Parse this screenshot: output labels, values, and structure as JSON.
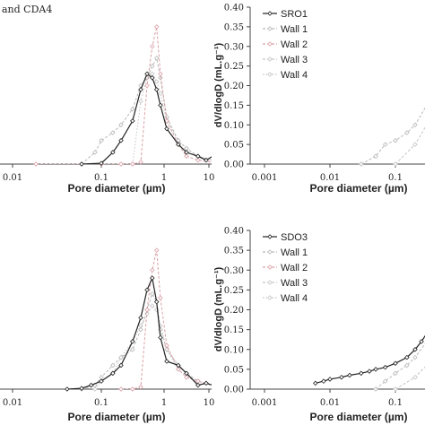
{
  "chart_data": [
    {
      "type": "line",
      "panel": "top-left",
      "title_fragment": "and CDA4",
      "xlabel": "Pore diameter (µm)",
      "ylabel": "",
      "x_scale": "log",
      "xlim": [
        0.001,
        10
      ],
      "ylim": [
        0,
        0.4
      ],
      "x_tick_labels": [
        "0.01",
        "0.1",
        "1",
        "10"
      ],
      "y_tick_labels": [],
      "legend": false,
      "series": [
        {
          "color": "#222222",
          "marker": "diamond-open",
          "dash": "solid",
          "x": [
            0.05,
            0.1,
            0.15,
            0.2,
            0.3,
            0.4,
            0.5,
            0.6,
            0.7,
            0.8,
            1.0,
            1.5,
            2,
            3,
            4,
            5,
            6,
            7
          ],
          "y": [
            0,
            0.002,
            0.03,
            0.06,
            0.11,
            0.19,
            0.23,
            0.22,
            0.19,
            0.15,
            0.09,
            0.05,
            0.03,
            0.02,
            0.01,
            0.02,
            0.005,
            0.01
          ]
        },
        {
          "color": "#d9a0a8",
          "marker": "diamond-open",
          "dash": "dashed",
          "x": [
            0.01,
            0.05,
            0.1,
            0.2,
            0.3,
            0.4,
            0.5,
            0.6,
            0.7,
            0.8,
            1.0,
            1.5,
            2,
            3,
            5,
            7
          ],
          "y": [
            0,
            0,
            0,
            0,
            0,
            0.005,
            0.2,
            0.3,
            0.35,
            0.23,
            0.11,
            0.05,
            0.02,
            0.01,
            0.005,
            0
          ]
        },
        {
          "color": "#b8b8b8",
          "marker": "diamond-open",
          "dash": "dashed",
          "x": [
            0.05,
            0.08,
            0.1,
            0.15,
            0.2,
            0.3,
            0.4,
            0.5,
            0.6,
            0.7,
            0.8,
            1.0,
            1.5,
            2,
            3,
            5,
            7
          ],
          "y": [
            0,
            0.03,
            0.06,
            0.08,
            0.1,
            0.14,
            0.2,
            0.22,
            0.25,
            0.27,
            0.22,
            0.12,
            0.06,
            0.04,
            0.02,
            0.01,
            0
          ]
        },
        {
          "color": "#c4c4c4",
          "marker": "diamond-open",
          "dash": "dotted",
          "x": [
            0.3,
            0.4,
            0.5,
            0.6,
            0.7,
            0.8,
            1.0,
            1.5,
            2,
            3,
            5,
            7
          ],
          "y": [
            0,
            0.16,
            0.22,
            0.23,
            0.21,
            0.18,
            0.11,
            0.06,
            0.04,
            0.02,
            0.01,
            0
          ]
        }
      ]
    },
    {
      "type": "line",
      "panel": "top-right",
      "xlabel": "Pore diameter (µm)",
      "ylabel": "dV/dlogD (mL.g⁻¹)",
      "x_scale": "log",
      "xlim": [
        0.001,
        0.45
      ],
      "ylim": [
        0,
        0.4
      ],
      "x_tick_labels": [
        "0.001",
        "0.01",
        "0.1"
      ],
      "y_tick_labels": [
        "0.00",
        "0.05",
        "0.10",
        "0.15",
        "0.20",
        "0.25",
        "0.30",
        "0.35",
        "0.40"
      ],
      "legend": true,
      "legend_position": "top-right",
      "series": [
        {
          "name": "SRO1",
          "color": "#222222",
          "marker": "diamond-open",
          "dash": "solid",
          "x": [
            0.3,
            0.35,
            0.4,
            0.45
          ],
          "y": [
            0,
            0.01,
            0.06,
            0.08
          ]
        },
        {
          "name": "Wall 1",
          "color": "#b8b8b8",
          "marker": "diamond-open",
          "dash": "dashed",
          "x": [
            0.03,
            0.05,
            0.07,
            0.1,
            0.15,
            0.2,
            0.3,
            0.4,
            0.45
          ],
          "y": [
            0,
            0.02,
            0.05,
            0.06,
            0.08,
            0.1,
            0.15,
            0.2,
            0.21
          ]
        },
        {
          "name": "Wall 2",
          "color": "#d9a0a8",
          "marker": "diamond-open",
          "dash": "dashed",
          "x": [
            0.35,
            0.4,
            0.45
          ],
          "y": [
            0,
            0.08,
            0.15
          ]
        },
        {
          "name": "Wall 3",
          "color": "#c4c4c4",
          "marker": "diamond-open",
          "dash": "dashed",
          "x": [
            0.1,
            0.2,
            0.3,
            0.45
          ],
          "y": [
            0,
            0.05,
            0.1,
            0.14
          ]
        },
        {
          "name": "Wall 4",
          "color": "#c4c4c4",
          "marker": "diamond-open",
          "dash": "dotted",
          "x": [
            0.4,
            0.45
          ],
          "y": [
            0,
            0.06
          ]
        }
      ]
    },
    {
      "type": "line",
      "panel": "bottom-left",
      "xlabel": "Pore diameter (µm)",
      "ylabel": "",
      "x_scale": "log",
      "xlim": [
        0.001,
        10
      ],
      "ylim": [
        0,
        0.4
      ],
      "x_tick_labels": [
        "0.01",
        "0.1",
        "1",
        "10"
      ],
      "y_tick_labels": [],
      "legend": false,
      "series": [
        {
          "color": "#222222",
          "marker": "diamond-open",
          "dash": "solid",
          "x": [
            0.03,
            0.05,
            0.07,
            0.1,
            0.15,
            0.2,
            0.3,
            0.4,
            0.5,
            0.6,
            0.7,
            0.8,
            1.0,
            1.5,
            2,
            3,
            4,
            5,
            7
          ],
          "y": [
            0,
            0.002,
            0.01,
            0.02,
            0.04,
            0.06,
            0.12,
            0.18,
            0.25,
            0.28,
            0.22,
            0.13,
            0.07,
            0.06,
            0.04,
            0.01,
            0.015,
            0.01,
            0
          ]
        },
        {
          "color": "#d9a0a8",
          "marker": "diamond-open",
          "dash": "dashed",
          "x": [
            0.2,
            0.3,
            0.4,
            0.5,
            0.6,
            0.7,
            0.8,
            1.0,
            1.5,
            2,
            3,
            5,
            7
          ],
          "y": [
            0,
            0,
            0.005,
            0.2,
            0.3,
            0.35,
            0.23,
            0.11,
            0.05,
            0.03,
            0.02,
            0.01,
            0
          ]
        },
        {
          "color": "#b8b8b8",
          "marker": "diamond-open",
          "dash": "dashed",
          "x": [
            0.05,
            0.08,
            0.1,
            0.15,
            0.2,
            0.3,
            0.4,
            0.5,
            0.6,
            0.7,
            0.8,
            1.0,
            1.5,
            2,
            3,
            5,
            7
          ],
          "y": [
            0,
            0.01,
            0.03,
            0.06,
            0.08,
            0.1,
            0.15,
            0.2,
            0.24,
            0.22,
            0.15,
            0.1,
            0.06,
            0.04,
            0.02,
            0.01,
            0
          ]
        },
        {
          "color": "#c4c4c4",
          "marker": "diamond-open",
          "dash": "dotted",
          "x": [
            0.08,
            0.1,
            0.15,
            0.2,
            0.3,
            0.4,
            0.5,
            0.6,
            0.7,
            0.8,
            1.0,
            1.5,
            2,
            3,
            5,
            7
          ],
          "y": [
            0,
            0.02,
            0.04,
            0.08,
            0.12,
            0.16,
            0.19,
            0.21,
            0.2,
            0.16,
            0.1,
            0.05,
            0.03,
            0.02,
            0.01,
            0
          ]
        }
      ]
    },
    {
      "type": "line",
      "panel": "bottom-right",
      "xlabel": "Pore diameter (µm)",
      "ylabel": "dV/dlogD (mL.g⁻¹)",
      "x_scale": "log",
      "xlim": [
        0.001,
        0.45
      ],
      "ylim": [
        0,
        0.4
      ],
      "x_tick_labels": [
        "0.001",
        "0.01",
        "0.1"
      ],
      "y_tick_labels": [
        "0.00",
        "0.05",
        "0.10",
        "0.15",
        "0.20",
        "0.25",
        "0.30",
        "0.35",
        "0.40"
      ],
      "legend": true,
      "legend_position": "top-right",
      "series": [
        {
          "name": "SDO3",
          "color": "#222222",
          "marker": "diamond-open",
          "dash": "solid",
          "x": [
            0.006,
            0.008,
            0.01,
            0.015,
            0.02,
            0.03,
            0.04,
            0.05,
            0.07,
            0.1,
            0.15,
            0.2,
            0.25,
            0.3,
            0.35,
            0.4,
            0.45
          ],
          "y": [
            0.015,
            0.02,
            0.025,
            0.03,
            0.035,
            0.04,
            0.045,
            0.05,
            0.055,
            0.065,
            0.08,
            0.1,
            0.12,
            0.14,
            0.16,
            0.19,
            0.21
          ]
        },
        {
          "name": "Wall 1",
          "color": "#b8b8b8",
          "marker": "diamond-open",
          "dash": "dashed",
          "x": [
            0.05,
            0.07,
            0.1,
            0.15,
            0.2,
            0.3,
            0.4,
            0.45
          ],
          "y": [
            0,
            0.02,
            0.04,
            0.06,
            0.08,
            0.12,
            0.16,
            0.18
          ]
        },
        {
          "name": "Wall 2",
          "color": "#d9a0a8",
          "marker": "diamond-open",
          "dash": "dashed",
          "x": [
            0.35,
            0.4,
            0.45
          ],
          "y": [
            0,
            0.05,
            0.1
          ]
        },
        {
          "name": "Wall 3",
          "color": "#c4c4c4",
          "marker": "diamond-open",
          "dash": "dashed",
          "x": [
            0.1,
            0.2,
            0.3,
            0.45
          ],
          "y": [
            0,
            0.03,
            0.06,
            0.09
          ]
        },
        {
          "name": "Wall 4",
          "color": "#c4c4c4",
          "marker": "diamond-open",
          "dash": "dotted",
          "x": [
            0.3,
            0.4,
            0.45
          ],
          "y": [
            0,
            0.02,
            0.04
          ]
        }
      ]
    }
  ]
}
